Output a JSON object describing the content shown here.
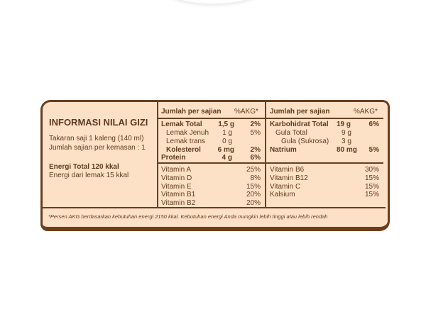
{
  "left": {
    "title": "INFORMASI NILAI  GIZI",
    "serving": "Takaran saji 1 kaleng (140 ml)",
    "servings_per_pack": "Jumlah sajian per kemasan : 1",
    "energy_total": "Energi Total 120 kkal",
    "energy_fat": "Energi dari lemak 15 kkal"
  },
  "header": {
    "amount": "Jumlah per sajian",
    "akg": "%AKG*"
  },
  "col1": [
    {
      "name": "Lemak Total",
      "amount": "1,5 g",
      "akg": "2%"
    },
    {
      "name": "Lemak Jenuh",
      "amount": "1 g",
      "akg": "5%"
    },
    {
      "name": "Lemak trans",
      "amount": "0 g",
      "akg": ""
    },
    {
      "name": "Kolesterol",
      "amount": "6 mg",
      "akg": "2%"
    },
    {
      "name": "Protein",
      "amount": "4 g",
      "akg": "6%"
    }
  ],
  "col2": [
    {
      "name": "Karbohidrat Total",
      "amount": "19 g",
      "akg": "6%"
    },
    {
      "name": "Gula Total",
      "amount": "9 g",
      "akg": ""
    },
    {
      "name": "Gula (Sukrosa)",
      "amount": "3 g",
      "akg": ""
    },
    {
      "name": "Natrium",
      "amount": "80 mg",
      "akg": "5%"
    }
  ],
  "vitamins1": [
    {
      "name": "Vitamin A",
      "akg": "25%"
    },
    {
      "name": "Vitamin D",
      "akg": "8%"
    },
    {
      "name": "Vitamin E",
      "akg": "15%"
    },
    {
      "name": "Vitamin B1",
      "akg": "20%"
    },
    {
      "name": "Vitamin B2",
      "akg": "20%"
    }
  ],
  "vitamins2": [
    {
      "name": "Vitamin B6",
      "akg": "30%"
    },
    {
      "name": "Vitamin B12",
      "akg": "15%"
    },
    {
      "name": "Vitamin C",
      "akg": "15%"
    },
    {
      "name": "Kalsium",
      "akg": "15%"
    }
  ],
  "footnote": "*Persen AKG berdasarkan kebutuhan energi 2150 kkal. Kebutuhan energi Anda mungkin lebih tinggi atau lebih rendah",
  "colors": {
    "background": "#fde1c6",
    "border": "#6b3f1d",
    "text": "#5e3b1e"
  }
}
